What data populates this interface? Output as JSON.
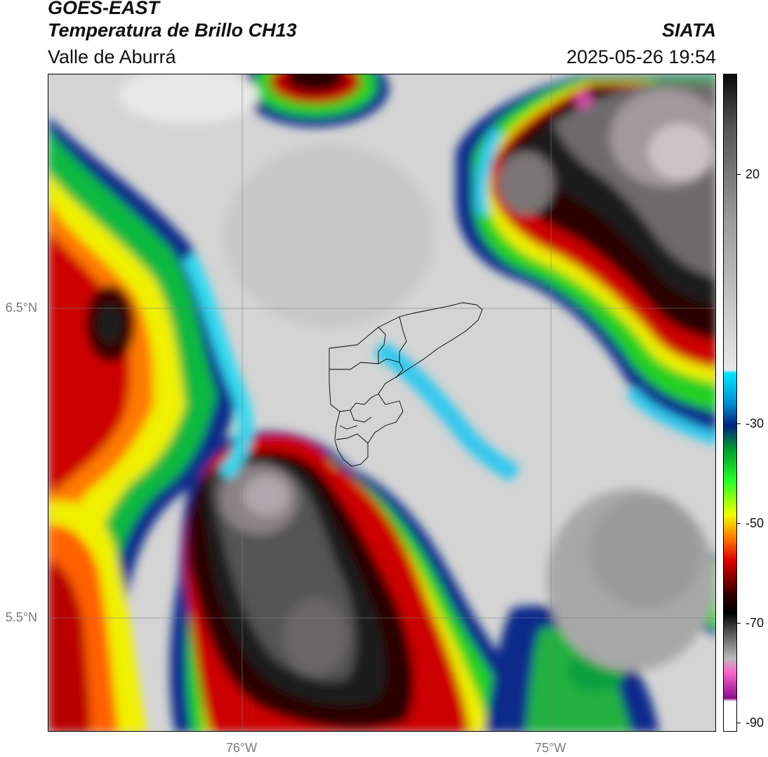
{
  "header": {
    "satellite": "GOES-EAST",
    "product": "Temperatura de Brillo CH13",
    "region": "Valle de Aburrá",
    "organization": "SIATA",
    "timestamp": "2025-05-26 19:54"
  },
  "axes": {
    "latitude_labels": [
      "6.5°N",
      "5.5°N"
    ],
    "longitude_labels": [
      "76°W",
      "75°W"
    ]
  },
  "colorbar": {
    "tick_labels": [
      "20",
      "-30",
      "-50",
      "-70",
      "-90"
    ]
  }
}
